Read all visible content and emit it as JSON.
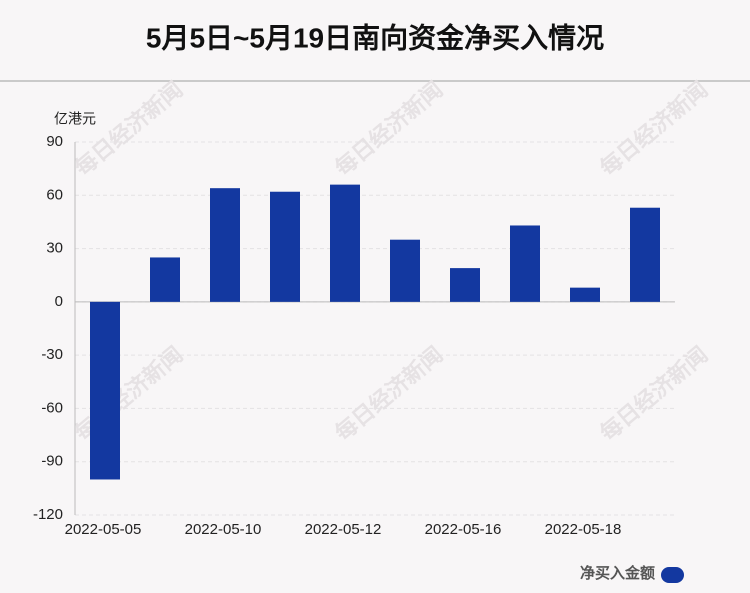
{
  "chart_data": {
    "type": "bar",
    "title": "5月5日~5月19日南向资金净买入情况",
    "y_axis_label": "亿港元",
    "watermark": "每日经济新闻",
    "categories": [
      "2022-05-05",
      null,
      "2022-05-10",
      null,
      "2022-05-12",
      null,
      "2022-05-16",
      null,
      "2022-05-18",
      null
    ],
    "series": [
      {
        "name": "净买入金额",
        "color": "#1338a0",
        "values": [
          -100,
          25,
          64,
          62,
          66,
          35,
          19,
          43,
          8,
          53
        ]
      }
    ],
    "ylim": [
      -120,
      90
    ],
    "yticks": [
      -120,
      -90,
      -60,
      -30,
      0,
      30,
      60,
      90
    ],
    "grid": true,
    "legend": "bottom-right"
  }
}
